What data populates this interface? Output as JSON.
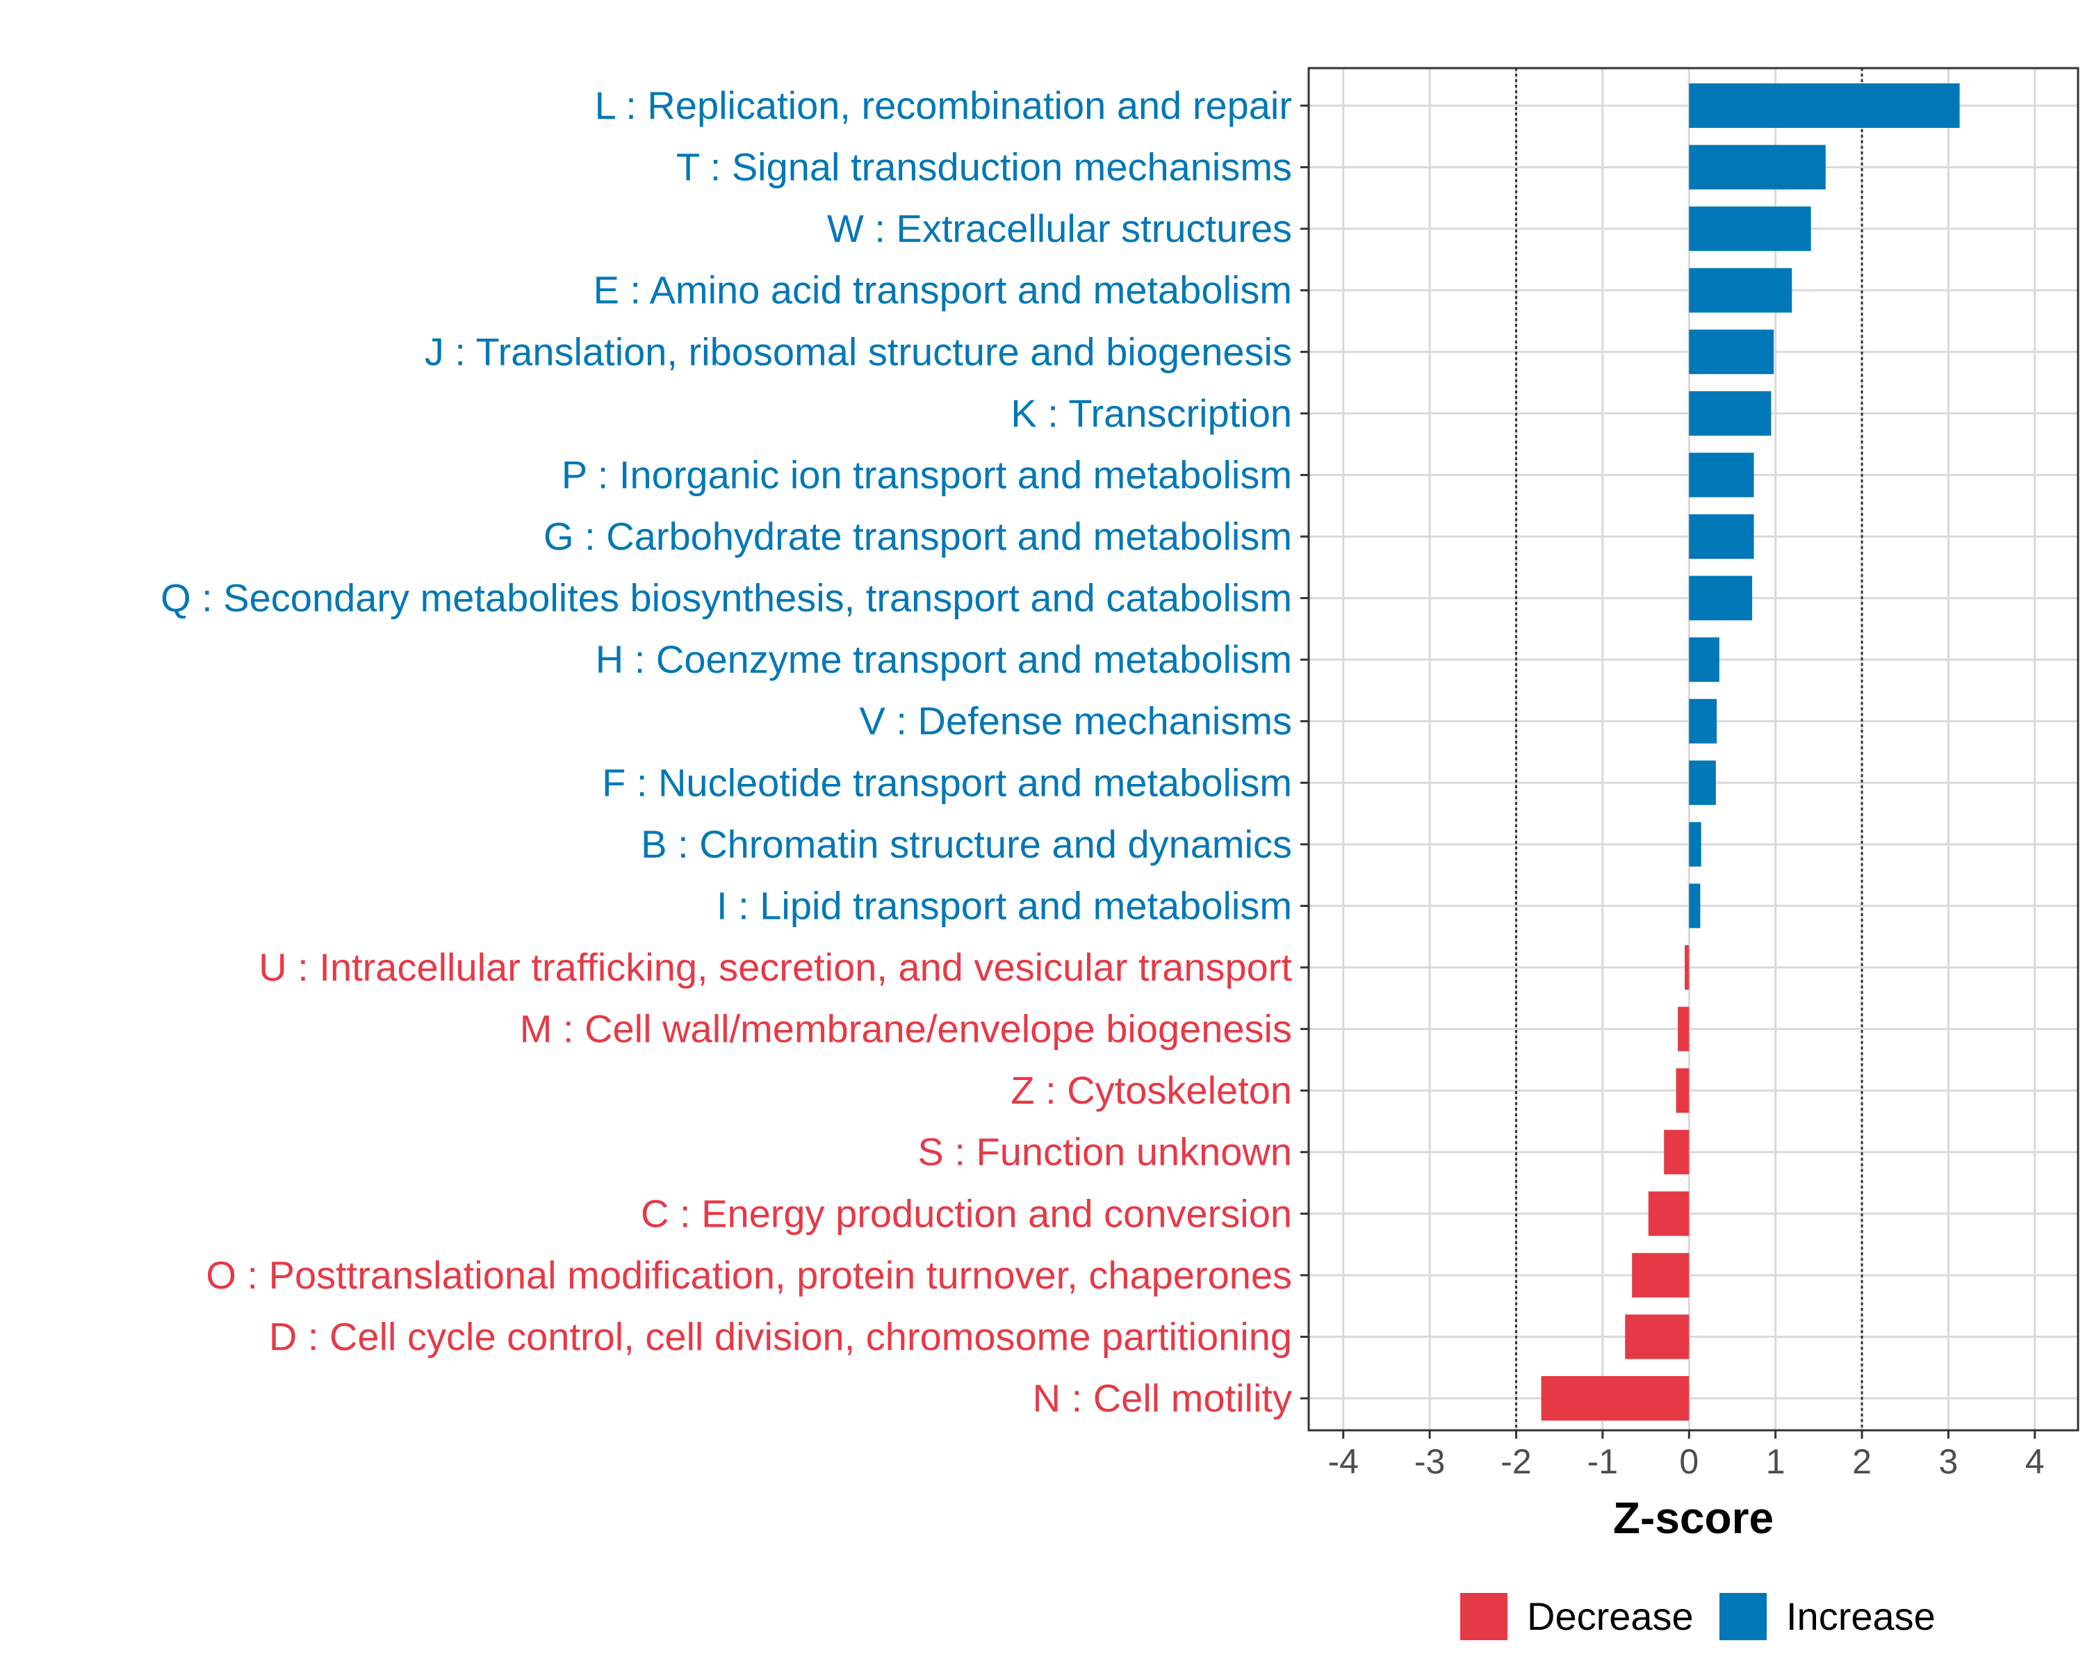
{
  "chart_data": {
    "type": "bar",
    "orientation": "horizontal",
    "title": "",
    "xlabel": "Z-score",
    "ylabel": "",
    "xlim": [
      -4.4,
      4.5
    ],
    "xticks": [
      -4,
      -3,
      -2,
      -1,
      0,
      1,
      2,
      3,
      4
    ],
    "xtick_labels": [
      "-4",
      "-3",
      "-2",
      "-1",
      "0",
      "1",
      "2",
      "3",
      "4"
    ],
    "reference_lines": [
      -2,
      2
    ],
    "grid": true,
    "legend_position": "bottom",
    "colors": {
      "Decrease": "#e63946",
      "Increase": "#0077b6"
    },
    "legend": [
      {
        "label": "Decrease",
        "color": "#e63946"
      },
      {
        "label": "Increase",
        "color": "#0077b6"
      }
    ],
    "categories": [
      "L : Replication, recombination and repair",
      "T : Signal transduction mechanisms",
      "W : Extracellular structures",
      "E : Amino acid transport and metabolism",
      "J : Translation, ribosomal structure and biogenesis",
      "K : Transcription",
      "P : Inorganic ion transport and metabolism",
      "G : Carbohydrate transport and metabolism",
      "Q : Secondary metabolites biosynthesis, transport and catabolism",
      "H : Coenzyme transport and metabolism",
      "V : Defense mechanisms",
      "F : Nucleotide transport and metabolism",
      "B : Chromatin structure and dynamics",
      "I : Lipid transport and metabolism",
      "U : Intracellular trafficking, secretion, and vesicular transport",
      "M : Cell wall/membrane/envelope biogenesis",
      "Z : Cytoskeleton",
      "S : Function unknown",
      "C : Energy production and conversion",
      "O : Posttranslational modification, protein turnover, chaperones",
      "D : Cell cycle control, cell division, chromosome partitioning",
      "N : Cell motility"
    ],
    "values": [
      3.13,
      1.58,
      1.41,
      1.19,
      0.98,
      0.95,
      0.75,
      0.75,
      0.73,
      0.35,
      0.32,
      0.31,
      0.14,
      0.13,
      -0.05,
      -0.13,
      -0.15,
      -0.29,
      -0.47,
      -0.66,
      -0.74,
      -1.71
    ],
    "groups": [
      "Increase",
      "Increase",
      "Increase",
      "Increase",
      "Increase",
      "Increase",
      "Increase",
      "Increase",
      "Increase",
      "Increase",
      "Increase",
      "Increase",
      "Increase",
      "Increase",
      "Decrease",
      "Decrease",
      "Decrease",
      "Decrease",
      "Decrease",
      "Decrease",
      "Decrease",
      "Decrease"
    ]
  }
}
